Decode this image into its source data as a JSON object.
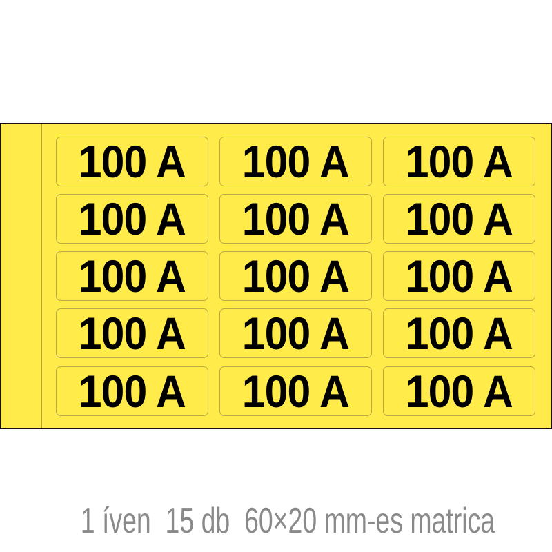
{
  "sheet": {
    "color": "#ffeb4a",
    "rows": 5,
    "columns": 3,
    "labels": [
      "100 A",
      "100 A",
      "100 A",
      "100 A",
      "100 A",
      "100 A",
      "100 A",
      "100 A",
      "100 A",
      "100 A",
      "100 A",
      "100 A",
      "100 A",
      "100 A",
      "100 A"
    ]
  },
  "caption": "1 íven  15 db  60×20 mm-es matrica"
}
